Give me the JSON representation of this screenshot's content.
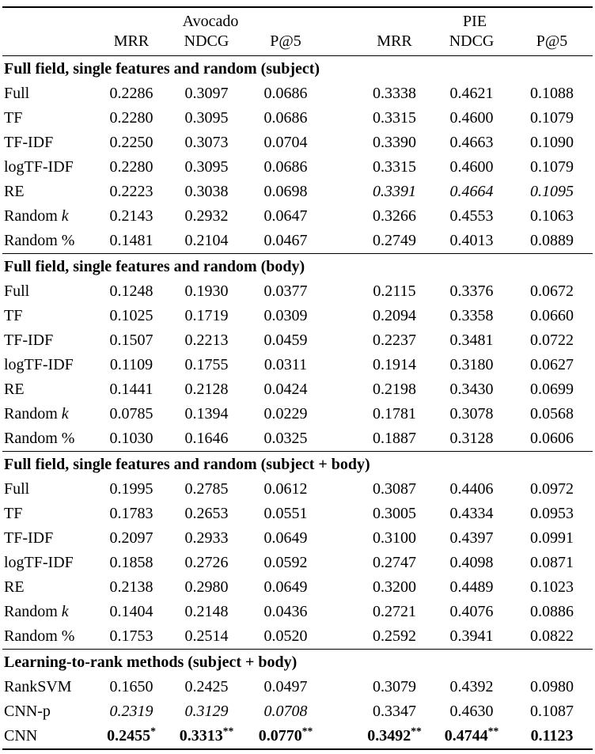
{
  "page": {
    "background": "#ffffff",
    "text_color": "#000000"
  },
  "table": {
    "column_groups": [
      {
        "label": "Avocado",
        "columns": [
          "MRR",
          "NDCG",
          "P@5"
        ]
      },
      {
        "label": "PIE",
        "columns": [
          "MRR",
          "NDCG",
          "P@5"
        ]
      }
    ],
    "sections": [
      {
        "title": "Full field, single features and random (subject)",
        "rows": [
          {
            "label": [
              {
                "text": "Full"
              }
            ],
            "values": [
              {
                "text": "0.2286"
              },
              {
                "text": "0.3097"
              },
              {
                "text": "0.0686"
              },
              {
                "text": "0.3338"
              },
              {
                "text": "0.4621"
              },
              {
                "text": "0.1088"
              }
            ]
          },
          {
            "label": [
              {
                "text": "TF"
              }
            ],
            "values": [
              {
                "text": "0.2280"
              },
              {
                "text": "0.3095"
              },
              {
                "text": "0.0686"
              },
              {
                "text": "0.3315"
              },
              {
                "text": "0.4600"
              },
              {
                "text": "0.1079"
              }
            ]
          },
          {
            "label": [
              {
                "text": "TF-IDF"
              }
            ],
            "values": [
              {
                "text": "0.2250"
              },
              {
                "text": "0.3073"
              },
              {
                "text": "0.0704"
              },
              {
                "text": "0.3390"
              },
              {
                "text": "0.4663"
              },
              {
                "text": "0.1090"
              }
            ]
          },
          {
            "label": [
              {
                "text": "logTF-IDF"
              }
            ],
            "values": [
              {
                "text": "0.2280"
              },
              {
                "text": "0.3095"
              },
              {
                "text": "0.0686"
              },
              {
                "text": "0.3315"
              },
              {
                "text": "0.4600"
              },
              {
                "text": "0.1079"
              }
            ]
          },
          {
            "label": [
              {
                "text": "RE"
              }
            ],
            "values": [
              {
                "text": "0.2223"
              },
              {
                "text": "0.3038"
              },
              {
                "text": "0.0698"
              },
              {
                "text": "0.3391",
                "italic": true
              },
              {
                "text": "0.4664",
                "italic": true
              },
              {
                "text": "0.1095",
                "italic": true
              }
            ]
          },
          {
            "label": [
              {
                "text": "Random "
              },
              {
                "text": "k",
                "italic": true
              }
            ],
            "values": [
              {
                "text": "0.2143"
              },
              {
                "text": "0.2932"
              },
              {
                "text": "0.0647"
              },
              {
                "text": "0.3266"
              },
              {
                "text": "0.4553"
              },
              {
                "text": "0.1063"
              }
            ]
          },
          {
            "label": [
              {
                "text": "Random %"
              }
            ],
            "values": [
              {
                "text": "0.1481"
              },
              {
                "text": "0.2104"
              },
              {
                "text": "0.0467"
              },
              {
                "text": "0.2749"
              },
              {
                "text": "0.4013"
              },
              {
                "text": "0.0889"
              }
            ]
          }
        ]
      },
      {
        "title": "Full field, single features and random (body)",
        "rows": [
          {
            "label": [
              {
                "text": "Full"
              }
            ],
            "values": [
              {
                "text": "0.1248"
              },
              {
                "text": "0.1930"
              },
              {
                "text": "0.0377"
              },
              {
                "text": "0.2115"
              },
              {
                "text": "0.3376"
              },
              {
                "text": "0.0672"
              }
            ]
          },
          {
            "label": [
              {
                "text": "TF"
              }
            ],
            "values": [
              {
                "text": "0.1025"
              },
              {
                "text": "0.1719"
              },
              {
                "text": "0.0309"
              },
              {
                "text": "0.2094"
              },
              {
                "text": "0.3358"
              },
              {
                "text": "0.0660"
              }
            ]
          },
          {
            "label": [
              {
                "text": "TF-IDF"
              }
            ],
            "values": [
              {
                "text": "0.1507"
              },
              {
                "text": "0.2213"
              },
              {
                "text": "0.0459"
              },
              {
                "text": "0.2237"
              },
              {
                "text": "0.3481"
              },
              {
                "text": "0.0722"
              }
            ]
          },
          {
            "label": [
              {
                "text": "logTF-IDF"
              }
            ],
            "values": [
              {
                "text": "0.1109"
              },
              {
                "text": "0.1755"
              },
              {
                "text": "0.0311"
              },
              {
                "text": "0.1914"
              },
              {
                "text": "0.3180"
              },
              {
                "text": "0.0627"
              }
            ]
          },
          {
            "label": [
              {
                "text": "RE"
              }
            ],
            "values": [
              {
                "text": "0.1441"
              },
              {
                "text": "0.2128"
              },
              {
                "text": "0.0424"
              },
              {
                "text": "0.2198"
              },
              {
                "text": "0.3430"
              },
              {
                "text": "0.0699"
              }
            ]
          },
          {
            "label": [
              {
                "text": "Random "
              },
              {
                "text": "k",
                "italic": true
              }
            ],
            "values": [
              {
                "text": "0.0785"
              },
              {
                "text": "0.1394"
              },
              {
                "text": "0.0229"
              },
              {
                "text": "0.1781"
              },
              {
                "text": "0.3078"
              },
              {
                "text": "0.0568"
              }
            ]
          },
          {
            "label": [
              {
                "text": "Random %"
              }
            ],
            "values": [
              {
                "text": "0.1030"
              },
              {
                "text": "0.1646"
              },
              {
                "text": "0.0325"
              },
              {
                "text": "0.1887"
              },
              {
                "text": "0.3128"
              },
              {
                "text": "0.0606"
              }
            ]
          }
        ]
      },
      {
        "title": "Full field, single features and random (subject + body)",
        "rows": [
          {
            "label": [
              {
                "text": "Full"
              }
            ],
            "values": [
              {
                "text": "0.1995"
              },
              {
                "text": "0.2785"
              },
              {
                "text": "0.0612"
              },
              {
                "text": "0.3087"
              },
              {
                "text": "0.4406"
              },
              {
                "text": "0.0972"
              }
            ]
          },
          {
            "label": [
              {
                "text": "TF"
              }
            ],
            "values": [
              {
                "text": "0.1783"
              },
              {
                "text": "0.2653"
              },
              {
                "text": "0.0551"
              },
              {
                "text": "0.3005"
              },
              {
                "text": "0.4334"
              },
              {
                "text": "0.0953"
              }
            ]
          },
          {
            "label": [
              {
                "text": "TF-IDF"
              }
            ],
            "values": [
              {
                "text": "0.2097"
              },
              {
                "text": "0.2933"
              },
              {
                "text": "0.0649"
              },
              {
                "text": "0.3100"
              },
              {
                "text": "0.4397"
              },
              {
                "text": "0.0991"
              }
            ]
          },
          {
            "label": [
              {
                "text": "logTF-IDF"
              }
            ],
            "values": [
              {
                "text": "0.1858"
              },
              {
                "text": "0.2726"
              },
              {
                "text": "0.0592"
              },
              {
                "text": "0.2747"
              },
              {
                "text": "0.4098"
              },
              {
                "text": "0.0871"
              }
            ]
          },
          {
            "label": [
              {
                "text": "RE"
              }
            ],
            "values": [
              {
                "text": "0.2138"
              },
              {
                "text": "0.2980"
              },
              {
                "text": "0.0649"
              },
              {
                "text": "0.3200"
              },
              {
                "text": "0.4489"
              },
              {
                "text": "0.1023"
              }
            ]
          },
          {
            "label": [
              {
                "text": "Random "
              },
              {
                "text": "k",
                "italic": true
              }
            ],
            "values": [
              {
                "text": "0.1404"
              },
              {
                "text": "0.2148"
              },
              {
                "text": "0.0436"
              },
              {
                "text": "0.2721"
              },
              {
                "text": "0.4076"
              },
              {
                "text": "0.0886"
              }
            ]
          },
          {
            "label": [
              {
                "text": "Random %"
              }
            ],
            "values": [
              {
                "text": "0.1753"
              },
              {
                "text": "0.2514"
              },
              {
                "text": "0.0520"
              },
              {
                "text": "0.2592"
              },
              {
                "text": "0.3941"
              },
              {
                "text": "0.0822"
              }
            ]
          }
        ]
      },
      {
        "title": "Learning-to-rank methods (subject + body)",
        "rows": [
          {
            "label": [
              {
                "text": "RankSVM"
              }
            ],
            "values": [
              {
                "text": "0.1650"
              },
              {
                "text": "0.2425"
              },
              {
                "text": "0.0497"
              },
              {
                "text": "0.3079"
              },
              {
                "text": "0.4392"
              },
              {
                "text": "0.0980"
              }
            ]
          },
          {
            "label": [
              {
                "text": "CNN-p"
              }
            ],
            "values": [
              {
                "text": "0.2319",
                "italic": true
              },
              {
                "text": "0.3129",
                "italic": true
              },
              {
                "text": "0.0708",
                "italic": true
              },
              {
                "text": "0.3347"
              },
              {
                "text": "0.4630"
              },
              {
                "text": "0.1087"
              }
            ]
          },
          {
            "label": [
              {
                "text": "CNN"
              }
            ],
            "values": [
              {
                "text": "0.2455",
                "bold": true,
                "sup": "*"
              },
              {
                "text": "0.3313",
                "bold": true,
                "sup": "**"
              },
              {
                "text": "0.0770",
                "bold": true,
                "sup": "**"
              },
              {
                "text": "0.3492",
                "bold": true,
                "sup": "**"
              },
              {
                "text": "0.4744",
                "bold": true,
                "sup": "**"
              },
              {
                "text": "0.1123",
                "bold": true
              }
            ]
          }
        ]
      }
    ]
  }
}
